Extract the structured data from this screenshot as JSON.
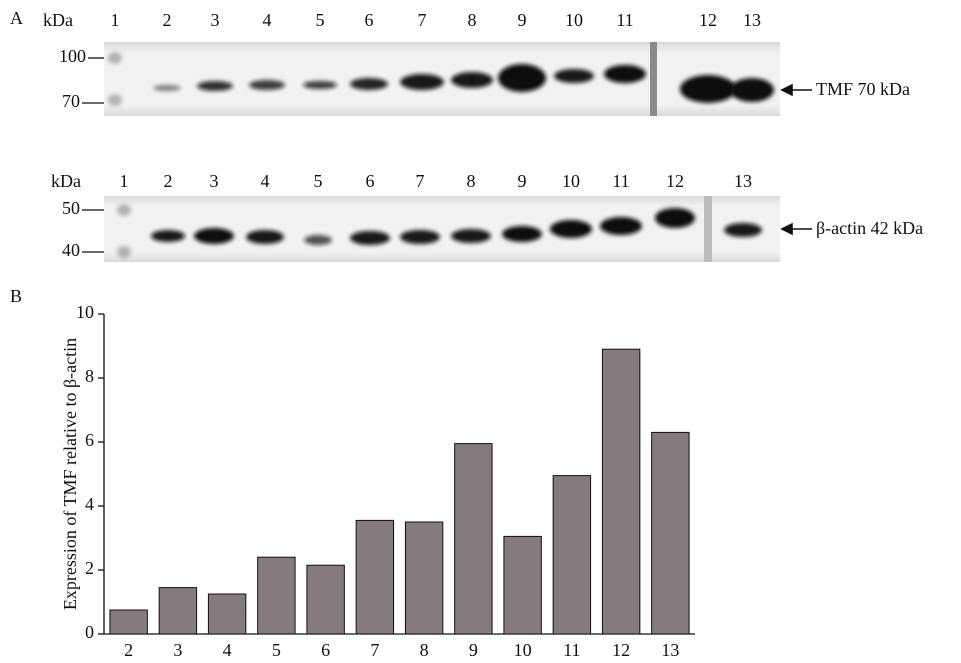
{
  "panel_a": {
    "label": "A",
    "blots": [
      {
        "unit": "kDa",
        "lanes": [
          "1",
          "2",
          "3",
          "4",
          "5",
          "6",
          "7",
          "8",
          "9",
          "10",
          "11",
          "12",
          "13"
        ],
        "markers": [
          "100",
          "70"
        ],
        "target": "TMF 70 kDa"
      },
      {
        "unit": "kDa",
        "lanes": [
          "1",
          "2",
          "3",
          "4",
          "5",
          "6",
          "7",
          "8",
          "9",
          "10",
          "11",
          "12",
          "13"
        ],
        "markers": [
          "50",
          "40"
        ],
        "target": "β-actin 42 kDa"
      }
    ]
  },
  "chart_data": {
    "type": "bar",
    "panel_label": "B",
    "y_label": "Expression of TMF relative to β-actin",
    "categories": [
      "2",
      "3",
      "4",
      "5",
      "6",
      "7",
      "8",
      "9",
      "10",
      "11",
      "12",
      "13"
    ],
    "values": [
      0.75,
      1.45,
      1.25,
      2.4,
      2.15,
      3.55,
      3.5,
      5.95,
      3.05,
      4.95,
      8.9,
      6.3
    ],
    "color": "#857b7d",
    "ylim": [
      0,
      10
    ],
    "yticks": [
      0,
      2,
      4,
      6,
      8,
      10
    ]
  }
}
